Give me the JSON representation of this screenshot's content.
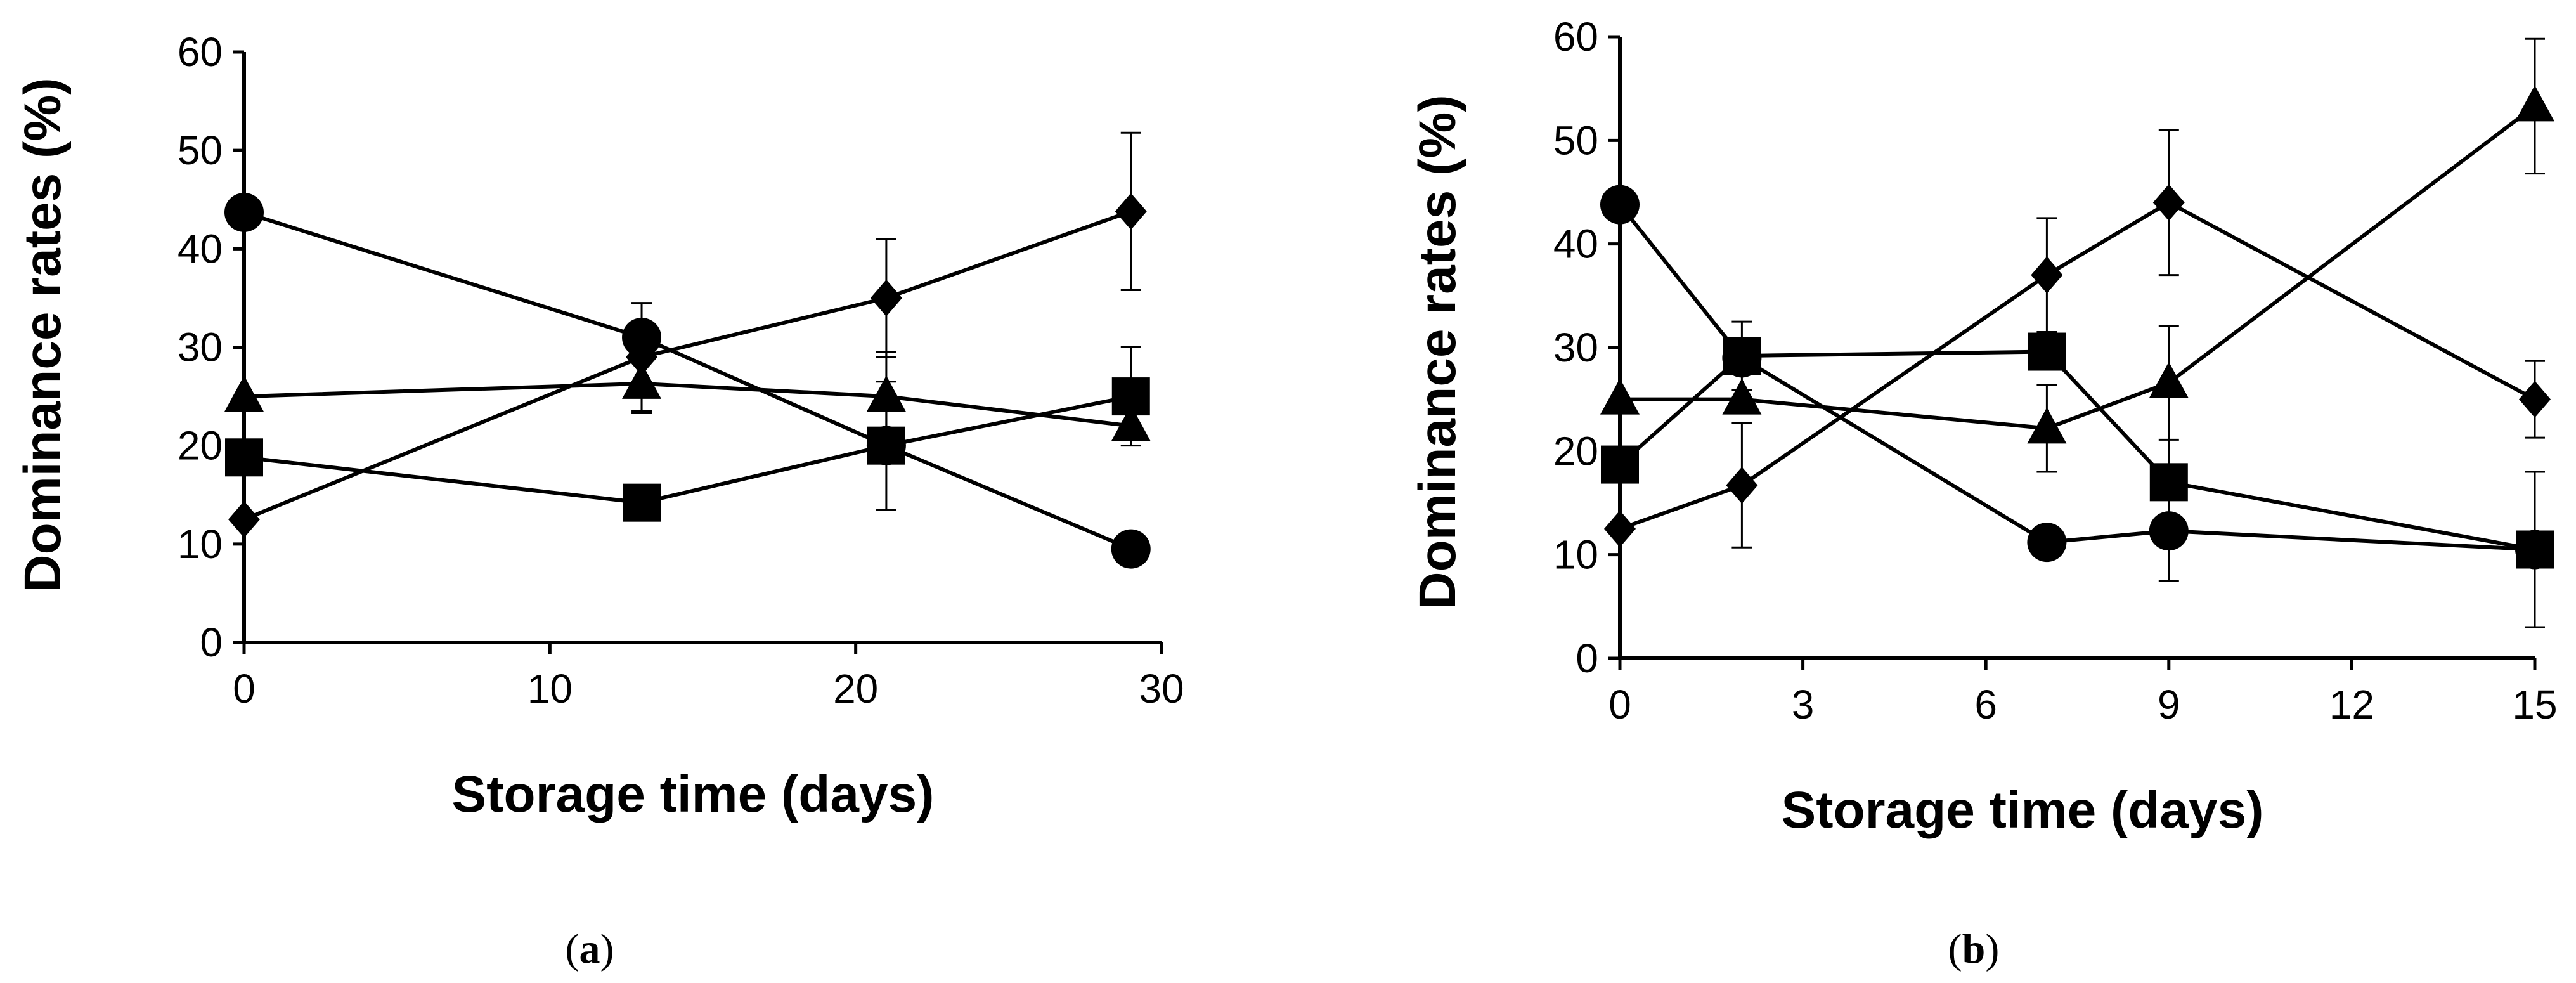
{
  "chart_data": [
    {
      "type": "line",
      "panel": "a",
      "caption_open": "(",
      "caption_letter": "a",
      "caption_close": ")",
      "xlabel": "Storage time (days)",
      "ylabel": "Dominance rates (%)",
      "xlim": [
        0,
        30
      ],
      "ylim": [
        0,
        60
      ],
      "xticks": [
        0,
        10,
        20,
        30
      ],
      "yticks": [
        0,
        10,
        20,
        30,
        40,
        50,
        60
      ],
      "grid": false,
      "series": [
        {
          "name": "circle",
          "marker": "circle",
          "x": [
            0,
            13,
            21,
            29
          ],
          "values": [
            43.7,
            31.0,
            20.0,
            9.5
          ],
          "err": [
            0,
            0,
            0,
            0
          ]
        },
        {
          "name": "triangle",
          "marker": "triangle",
          "x": [
            0,
            13,
            21,
            29
          ],
          "values": [
            25.0,
            26.3,
            25.0,
            22.0
          ],
          "err": [
            0,
            3.0,
            4.5,
            0
          ]
        },
        {
          "name": "square",
          "marker": "square",
          "x": [
            0,
            13,
            21,
            29
          ],
          "values": [
            18.8,
            14.2,
            20.0,
            25.0
          ],
          "err": [
            0,
            0,
            6.5,
            5.0
          ]
        },
        {
          "name": "diamond",
          "marker": "diamond",
          "x": [
            0,
            13,
            21,
            29
          ],
          "values": [
            12.5,
            29.0,
            35.0,
            43.8
          ],
          "err": [
            0,
            5.5,
            6.0,
            8.0
          ]
        }
      ]
    },
    {
      "type": "line",
      "panel": "b",
      "caption_open": "(",
      "caption_letter": "b",
      "caption_close": ")",
      "xlabel": "Storage time (days)",
      "ylabel": "Dominance rates (%)",
      "xlim": [
        0,
        15
      ],
      "ylim": [
        0,
        60
      ],
      "xticks": [
        0,
        3,
        6,
        9,
        12,
        15
      ],
      "yticks": [
        0,
        10,
        20,
        30,
        40,
        50,
        60
      ],
      "grid": false,
      "series": [
        {
          "name": "circle",
          "marker": "circle",
          "x": [
            0,
            2,
            7,
            9,
            15
          ],
          "values": [
            43.8,
            29.0,
            11.2,
            12.3,
            10.5
          ],
          "err": [
            0,
            0,
            0,
            0,
            0
          ]
        },
        {
          "name": "triangle",
          "marker": "triangle",
          "x": [
            0,
            2,
            7,
            9,
            15
          ],
          "values": [
            25.0,
            25.0,
            22.2,
            26.6,
            53.3
          ],
          "err": [
            0,
            0,
            4.2,
            5.5,
            6.5
          ]
        },
        {
          "name": "square",
          "marker": "square",
          "x": [
            0,
            2,
            7,
            9,
            15
          ],
          "values": [
            18.7,
            29.2,
            29.6,
            17.0,
            10.5
          ],
          "err": [
            0,
            3.3,
            0,
            9.5,
            7.5
          ]
        },
        {
          "name": "diamond",
          "marker": "diamond",
          "x": [
            0,
            2,
            7,
            9,
            15
          ],
          "values": [
            12.5,
            16.7,
            37.0,
            44.0,
            25.0
          ],
          "err": [
            0,
            6.0,
            5.5,
            7.0,
            3.7
          ]
        }
      ]
    }
  ]
}
